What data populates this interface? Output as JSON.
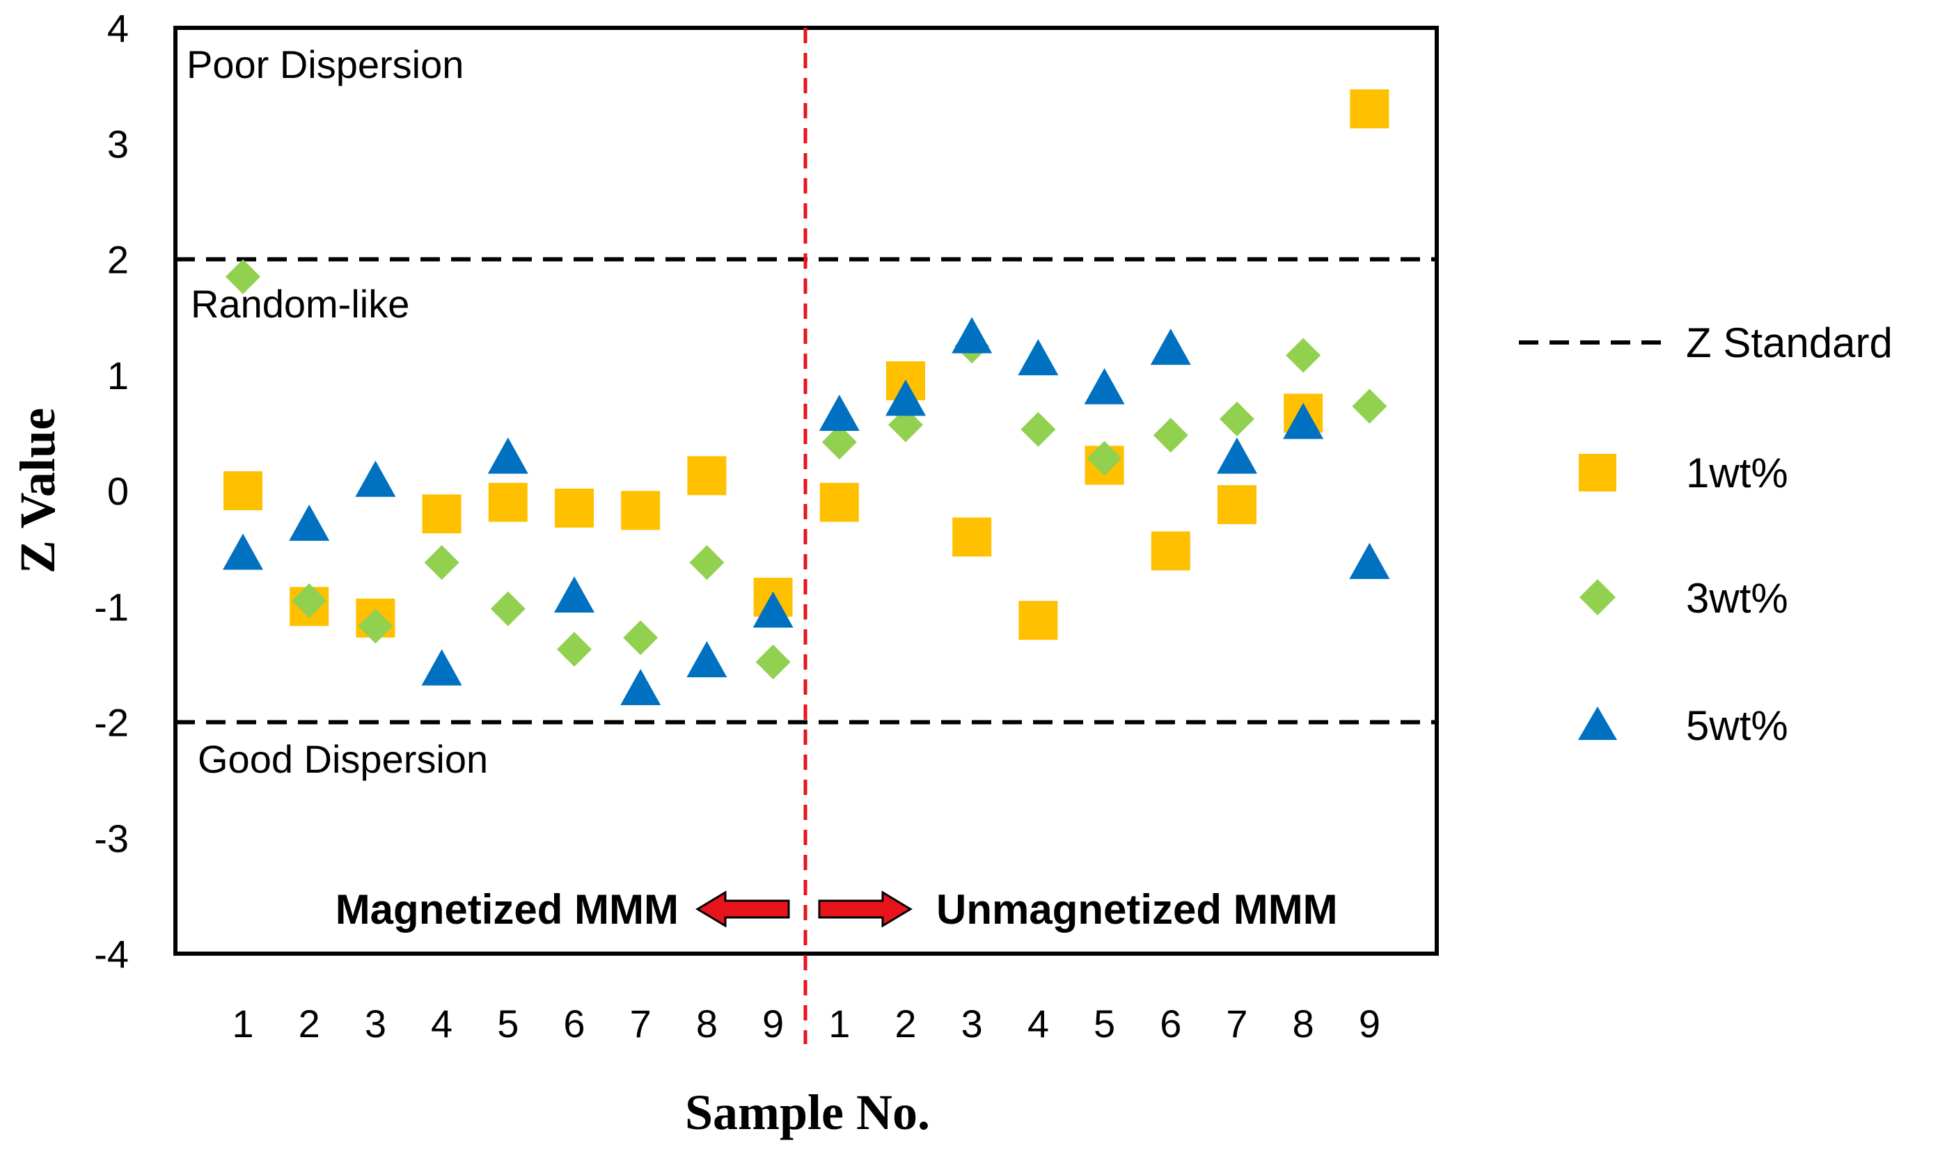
{
  "chart_data": {
    "type": "scatter",
    "title": "",
    "xlabel": "Sample No.",
    "ylabel": "Z Value",
    "ylim": [
      -4,
      4
    ],
    "yticks": [
      "4",
      "3",
      "2",
      "1",
      "0",
      "-1",
      "-2",
      "-3",
      "-4"
    ],
    "x_tick_labels": [
      "1",
      "2",
      "3",
      "4",
      "5",
      "6",
      "7",
      "8",
      "9",
      "1",
      "2",
      "3",
      "4",
      "5",
      "6",
      "7",
      "8",
      "9"
    ],
    "groups": [
      "Magnetized MMM",
      "Unmagnetized MMM"
    ],
    "reference_lines": [
      {
        "name": "Z Standard",
        "y": 2
      },
      {
        "name": "Z Standard",
        "y": -2
      }
    ],
    "regions": [
      "Poor Dispersion",
      "Random-like",
      "Good Dispersion"
    ],
    "legend": [
      "Z Standard",
      "1wt%",
      "3wt%",
      "5wt%"
    ],
    "series": [
      {
        "name": "1wt%",
        "marker": "square",
        "color": "#FFC000",
        "values": [
          0.0,
          -1.0,
          -1.1,
          -0.2,
          -0.1,
          -0.15,
          -0.17,
          0.13,
          -0.92,
          -0.1,
          0.95,
          -0.4,
          -1.12,
          0.22,
          -0.52,
          -0.12,
          0.67,
          3.3
        ]
      },
      {
        "name": "3wt%",
        "marker": "diamond",
        "color": "#92D050",
        "values": [
          1.85,
          -0.95,
          -1.17,
          -0.62,
          -1.02,
          -1.37,
          -1.27,
          -0.62,
          -1.48,
          0.42,
          0.57,
          1.25,
          0.53,
          0.28,
          0.48,
          0.62,
          1.17,
          0.73
        ]
      },
      {
        "name": "5wt%",
        "marker": "triangle",
        "color": "#0070C0",
        "values": [
          -0.55,
          -0.3,
          0.08,
          -1.55,
          0.28,
          -0.92,
          -1.72,
          -1.48,
          -1.05,
          0.65,
          0.78,
          1.32,
          1.13,
          0.88,
          1.22,
          0.28,
          0.58,
          -0.63
        ]
      }
    ]
  },
  "colors": {
    "divider": "#E8141C",
    "arrow_fill": "#E8141C",
    "reference_line": "#000000"
  },
  "icons": {
    "left_arrow": "left-arrow-icon",
    "right_arrow": "right-arrow-icon"
  }
}
